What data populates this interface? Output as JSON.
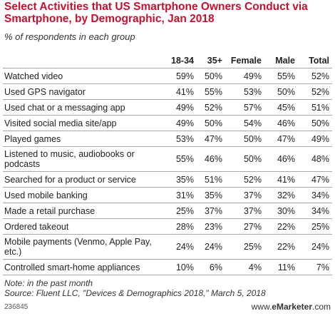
{
  "chart_data": {
    "type": "table",
    "title": "Select Activities that US Smartphone Owners Conduct via Smartphone, by Demographic, Jan 2018",
    "subtitle": "% of respondents in each group",
    "columns": [
      "18-34",
      "35+",
      "Female",
      "Male",
      "Total"
    ],
    "rows": [
      {
        "label": "Watched video",
        "values": [
          "59%",
          "50%",
          "49%",
          "55%",
          "52%"
        ]
      },
      {
        "label": "Used GPS navigator",
        "values": [
          "41%",
          "55%",
          "53%",
          "50%",
          "52%"
        ]
      },
      {
        "label": "Used chat or a messaging app",
        "values": [
          "49%",
          "52%",
          "57%",
          "45%",
          "51%"
        ]
      },
      {
        "label": "Visited social media site/app",
        "values": [
          "49%",
          "50%",
          "54%",
          "46%",
          "50%"
        ]
      },
      {
        "label": "Played games",
        "values": [
          "53%",
          "47%",
          "50%",
          "47%",
          "49%"
        ]
      },
      {
        "label": "Listened to music, audiobooks or podcasts",
        "values": [
          "55%",
          "46%",
          "50%",
          "46%",
          "48%"
        ]
      },
      {
        "label": "Searched for a product or service",
        "values": [
          "35%",
          "51%",
          "52%",
          "41%",
          "47%"
        ]
      },
      {
        "label": "Used mobile banking",
        "values": [
          "31%",
          "35%",
          "37%",
          "32%",
          "34%"
        ]
      },
      {
        "label": "Made a retail purchase",
        "values": [
          "25%",
          "37%",
          "37%",
          "30%",
          "34%"
        ]
      },
      {
        "label": "Ordered takeout",
        "values": [
          "28%",
          "23%",
          "27%",
          "22%",
          "25%"
        ]
      },
      {
        "label": "Mobile payments (Venmo, Apple Pay, etc.)",
        "values": [
          "24%",
          "24%",
          "25%",
          "22%",
          "24%"
        ]
      },
      {
        "label": "Controlled smart-home appliances",
        "values": [
          "10%",
          "6%",
          "4%",
          "11%",
          "7%"
        ]
      }
    ],
    "note": "Note: in the past month",
    "source": "Source: Fluent LLC, \"Devices & Demographics 2018,\" March 5, 2018"
  },
  "footer": {
    "chart_id": "236845",
    "brand_prefix": "www.",
    "brand_name": "eMarketer",
    "brand_suffix": ".com"
  },
  "colors": {
    "title": "#c8102e",
    "rule": "#a9a9a9"
  }
}
